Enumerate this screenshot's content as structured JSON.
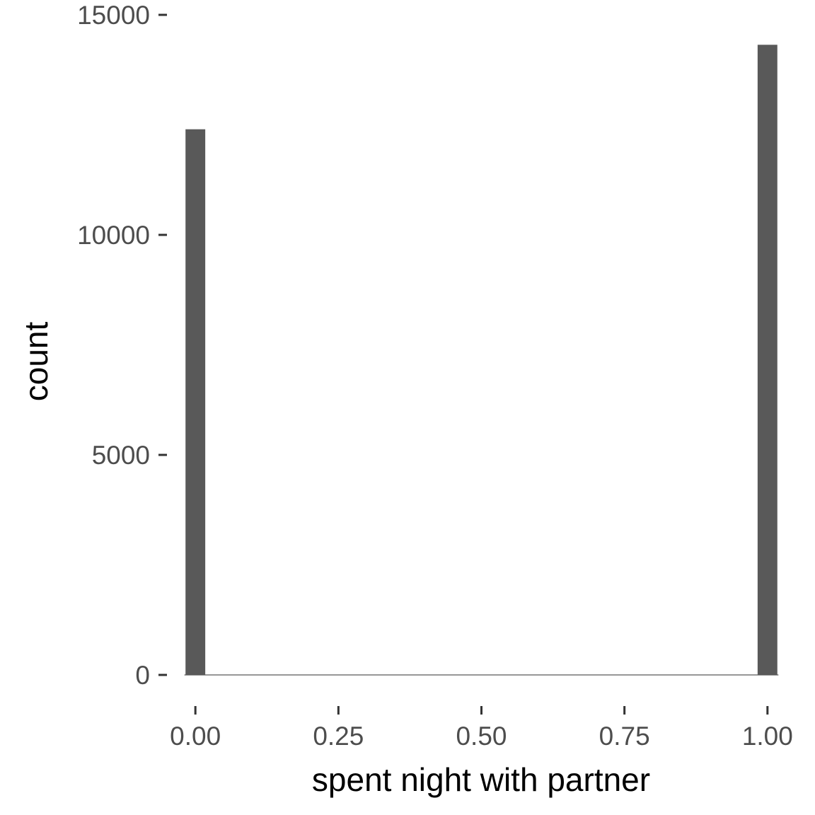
{
  "chart_data": {
    "type": "bar",
    "title": "",
    "xlabel": "spent night with partner",
    "ylabel": "count",
    "xlim": [
      -0.02,
      1.02
    ],
    "ylim": [
      0,
      15000
    ],
    "x_ticks": [
      {
        "value": 0,
        "label": "0.00"
      },
      {
        "value": 0.25,
        "label": "0.25"
      },
      {
        "value": 0.5,
        "label": "0.50"
      },
      {
        "value": 0.75,
        "label": "0.75"
      },
      {
        "value": 1,
        "label": "1.00"
      }
    ],
    "y_ticks": [
      {
        "value": 0,
        "label": "0"
      },
      {
        "value": 5000,
        "label": "5000"
      },
      {
        "value": 10000,
        "label": "10000"
      },
      {
        "value": 15000,
        "label": "15000"
      }
    ],
    "bin_width": 0.0345,
    "bins": [
      {
        "x": 0,
        "count": 12400
      },
      {
        "x": 1,
        "count": 14320
      }
    ],
    "grid": false,
    "legend": "none",
    "bar_color": "#595959",
    "baseline_color": "#595959"
  }
}
